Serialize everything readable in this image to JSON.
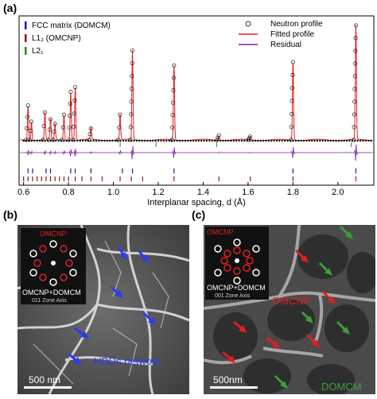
{
  "figure": {
    "panel_a_label": "(a)",
    "panel_b_label": "(b)",
    "panel_c_label": "(c)"
  },
  "chart_data": {
    "type": "line",
    "xlabel": "Interplanar spacing, d (Å)",
    "xlim": [
      0.58,
      2.16
    ],
    "x_ticks": [
      "0.6",
      "0.8",
      "1.0",
      "1.2",
      "1.4",
      "1.6",
      "1.8",
      "2.0"
    ],
    "x_tick_values": [
      0.6,
      0.8,
      1.0,
      1.2,
      1.4,
      1.6,
      1.8,
      2.0
    ],
    "legend_left": [
      {
        "label": "FCC matrix (DOMCM)",
        "color": "#1a1aa8"
      },
      {
        "label": "L1₂ (OMCNP)",
        "color": "#8b1a1a"
      },
      {
        "label": "L2₁",
        "color": "#1f8a2e"
      }
    ],
    "legend_right": [
      {
        "label": "Neutron profile",
        "marker": "open-circle"
      },
      {
        "label": "Fitted profile",
        "color": "#e02020"
      },
      {
        "label": "Residual",
        "color": "#7a1fa2"
      }
    ],
    "peaks": [
      {
        "d": 0.62,
        "h": 0.3
      },
      {
        "d": 0.635,
        "h": 0.16
      },
      {
        "d": 0.695,
        "h": 0.24
      },
      {
        "d": 0.72,
        "h": 0.18
      },
      {
        "d": 0.74,
        "h": 0.14
      },
      {
        "d": 0.78,
        "h": 0.22
      },
      {
        "d": 0.81,
        "h": 0.42
      },
      {
        "d": 0.83,
        "h": 0.46
      },
      {
        "d": 0.9,
        "h": 0.1
      },
      {
        "d": 1.03,
        "h": 0.22
      },
      {
        "d": 1.085,
        "h": 0.78
      },
      {
        "d": 1.27,
        "h": 0.65
      },
      {
        "d": 1.47,
        "h": 0.04
      },
      {
        "d": 1.61,
        "h": 0.03
      },
      {
        "d": 1.8,
        "h": 0.68
      },
      {
        "d": 2.08,
        "h": 1.0
      }
    ],
    "fcc_ticks": [
      0.62,
      0.64,
      0.7,
      0.72,
      0.81,
      0.83,
      0.9,
      1.04,
      1.085,
      1.27,
      1.8,
      2.08
    ],
    "l12_ticks": [
      0.6,
      0.62,
      0.64,
      0.66,
      0.68,
      0.7,
      0.72,
      0.74,
      0.76,
      0.78,
      0.8,
      0.83,
      0.86,
      0.9,
      0.95,
      1.03,
      1.08,
      1.13,
      1.27,
      1.47,
      1.61,
      1.8,
      2.08
    ],
    "l21_ticks": [
      1.03,
      1.19,
      1.46,
      2.06
    ]
  },
  "panel_b": {
    "inset_label_top": "OMCNP",
    "inset_label_bottom": "OMCNP+DOMCM",
    "inset_zone": "011 Zone Axis",
    "annotation": "HDDs network",
    "scale_bar": "500 nm"
  },
  "panel_c": {
    "inset_label_top": "OMCNP",
    "inset_label_bottom": "OMCNP+DOMCM",
    "inset_zone": "001 Zone Axis",
    "annotation_red": "OMCNP",
    "annotation_green": "DOMCM",
    "scale_bar": "500nm"
  },
  "colors": {
    "fcc": "#1a1aa8",
    "l12": "#8b1a1a",
    "l21": "#1f8a2e",
    "fit": "#e02020",
    "residual": "#7a1fa2",
    "hdd_arrow": "#2a3cf0",
    "omcnp_arrow": "#e02020",
    "domcm_arrow": "#3aa03a"
  }
}
